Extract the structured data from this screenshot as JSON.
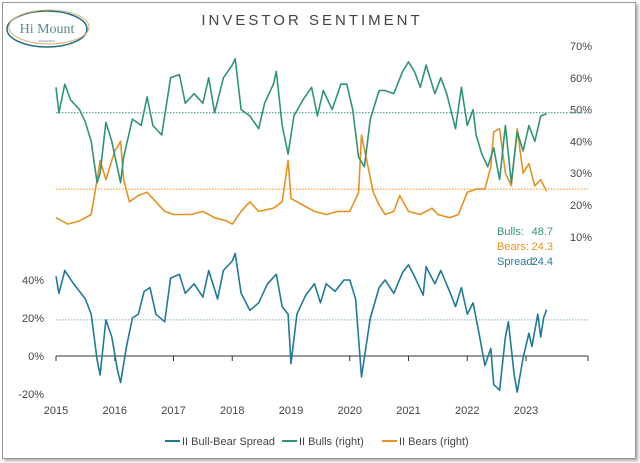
{
  "logo": {
    "text": "Hi Mount",
    "subtext": "RESEARCH"
  },
  "chart_data": {
    "type": "line",
    "title": "INVESTOR SENTIMENT",
    "x_ticks": [
      "2015",
      "2016",
      "2017",
      "2018",
      "2019",
      "2020",
      "2021",
      "2022",
      "2023"
    ],
    "top_panel": {
      "right_axis_ticks": [
        "70%",
        "60%",
        "50%",
        "40%",
        "30%",
        "20%",
        "10%"
      ],
      "ylim": [
        10,
        70
      ],
      "reference_lines": [
        {
          "series": "II Bulls (right)",
          "value": 49
        },
        {
          "series": "II Bears (right)",
          "value": 25
        }
      ],
      "series": [
        {
          "name": "II Bulls (right)",
          "color": "#2e9479",
          "points": [
            [
              2015.0,
              57
            ],
            [
              2015.05,
              49
            ],
            [
              2015.15,
              58
            ],
            [
              2015.25,
              53
            ],
            [
              2015.4,
              50
            ],
            [
              2015.5,
              46
            ],
            [
              2015.6,
              40
            ],
            [
              2015.7,
              27
            ],
            [
              2015.75,
              30
            ],
            [
              2015.85,
              46
            ],
            [
              2015.95,
              40
            ],
            [
              2016.1,
              27
            ],
            [
              2016.15,
              35
            ],
            [
              2016.3,
              47
            ],
            [
              2016.45,
              45
            ],
            [
              2016.55,
              54
            ],
            [
              2016.65,
              45
            ],
            [
              2016.8,
              42
            ],
            [
              2016.95,
              60
            ],
            [
              2017.1,
              61
            ],
            [
              2017.2,
              52
            ],
            [
              2017.35,
              55
            ],
            [
              2017.5,
              52
            ],
            [
              2017.6,
              60
            ],
            [
              2017.7,
              49
            ],
            [
              2017.85,
              60
            ],
            [
              2018.0,
              64
            ],
            [
              2018.05,
              66
            ],
            [
              2018.15,
              50
            ],
            [
              2018.3,
              48
            ],
            [
              2018.45,
              44
            ],
            [
              2018.55,
              52
            ],
            [
              2018.7,
              58
            ],
            [
              2018.75,
              62
            ],
            [
              2018.85,
              45
            ],
            [
              2018.95,
              36
            ],
            [
              2019.05,
              48
            ],
            [
              2019.2,
              53
            ],
            [
              2019.35,
              57
            ],
            [
              2019.45,
              48
            ],
            [
              2019.55,
              56
            ],
            [
              2019.7,
              50
            ],
            [
              2019.85,
              58
            ],
            [
              2019.95,
              58
            ],
            [
              2020.05,
              50
            ],
            [
              2020.15,
              35
            ],
            [
              2020.25,
              32
            ],
            [
              2020.35,
              47
            ],
            [
              2020.5,
              56
            ],
            [
              2020.6,
              56
            ],
            [
              2020.75,
              55
            ],
            [
              2020.9,
              62
            ],
            [
              2021.0,
              65
            ],
            [
              2021.1,
              62
            ],
            [
              2021.2,
              57
            ],
            [
              2021.3,
              64
            ],
            [
              2021.45,
              55
            ],
            [
              2021.55,
              60
            ],
            [
              2021.65,
              55
            ],
            [
              2021.8,
              44
            ],
            [
              2021.9,
              57
            ],
            [
              2022.0,
              45
            ],
            [
              2022.1,
              50
            ],
            [
              2022.15,
              42
            ],
            [
              2022.25,
              36
            ],
            [
              2022.35,
              32
            ],
            [
              2022.45,
              38
            ],
            [
              2022.55,
              28
            ],
            [
              2022.65,
              45
            ],
            [
              2022.75,
              27
            ],
            [
              2022.85,
              43
            ],
            [
              2022.95,
              37
            ],
            [
              2023.05,
              45
            ],
            [
              2023.15,
              40
            ],
            [
              2023.25,
              48
            ],
            [
              2023.35,
              48.7
            ]
          ]
        },
        {
          "name": "II Bears (right)",
          "color": "#e8901f",
          "points": [
            [
              2015.0,
              16
            ],
            [
              2015.2,
              14
            ],
            [
              2015.4,
              15
            ],
            [
              2015.6,
              17
            ],
            [
              2015.7,
              28
            ],
            [
              2015.75,
              34
            ],
            [
              2015.85,
              28
            ],
            [
              2016.0,
              37
            ],
            [
              2016.1,
              40
            ],
            [
              2016.15,
              28
            ],
            [
              2016.25,
              21
            ],
            [
              2016.4,
              23
            ],
            [
              2016.55,
              24
            ],
            [
              2016.7,
              21
            ],
            [
              2016.85,
              18
            ],
            [
              2017.0,
              17
            ],
            [
              2017.3,
              17
            ],
            [
              2017.5,
              18
            ],
            [
              2017.7,
              16
            ],
            [
              2017.9,
              15
            ],
            [
              2018.0,
              14
            ],
            [
              2018.15,
              18
            ],
            [
              2018.3,
              21
            ],
            [
              2018.45,
              18
            ],
            [
              2018.7,
              19
            ],
            [
              2018.85,
              21
            ],
            [
              2018.95,
              34
            ],
            [
              2019.0,
              22
            ],
            [
              2019.2,
              20
            ],
            [
              2019.4,
              18
            ],
            [
              2019.6,
              17
            ],
            [
              2019.8,
              18
            ],
            [
              2020.0,
              18
            ],
            [
              2020.15,
              24
            ],
            [
              2020.2,
              42
            ],
            [
              2020.3,
              33
            ],
            [
              2020.4,
              24
            ],
            [
              2020.5,
              20
            ],
            [
              2020.6,
              17
            ],
            [
              2020.75,
              18
            ],
            [
              2020.85,
              23
            ],
            [
              2021.0,
              18
            ],
            [
              2021.2,
              17
            ],
            [
              2021.4,
              19
            ],
            [
              2021.5,
              17
            ],
            [
              2021.7,
              16
            ],
            [
              2021.85,
              17
            ],
            [
              2022.0,
              24
            ],
            [
              2022.15,
              25
            ],
            [
              2022.3,
              25
            ],
            [
              2022.4,
              32
            ],
            [
              2022.45,
              43
            ],
            [
              2022.55,
              44
            ],
            [
              2022.65,
              30
            ],
            [
              2022.75,
              26
            ],
            [
              2022.85,
              44
            ],
            [
              2022.95,
              30
            ],
            [
              2023.05,
              33
            ],
            [
              2023.15,
              26
            ],
            [
              2023.25,
              28
            ],
            [
              2023.35,
              24.3
            ]
          ]
        }
      ]
    },
    "bottom_panel": {
      "left_axis_ticks": [
        "40%",
        "20%",
        "0%",
        "-20%"
      ],
      "ylim": [
        -20,
        40
      ],
      "reference_lines": [
        {
          "series": "II Bull-Bear Spread",
          "value": 19
        }
      ],
      "series": [
        {
          "name": "II Bull-Bear Spread",
          "color": "#1f7a99",
          "points": [
            [
              2015.0,
              42
            ],
            [
              2015.05,
              33
            ],
            [
              2015.15,
              45
            ],
            [
              2015.3,
              38
            ],
            [
              2015.5,
              30
            ],
            [
              2015.6,
              22
            ],
            [
              2015.7,
              -2
            ],
            [
              2015.75,
              -10
            ],
            [
              2015.85,
              19
            ],
            [
              2015.95,
              10
            ],
            [
              2016.05,
              -8
            ],
            [
              2016.1,
              -14
            ],
            [
              2016.2,
              5
            ],
            [
              2016.3,
              20
            ],
            [
              2016.4,
              22
            ],
            [
              2016.5,
              34
            ],
            [
              2016.6,
              36
            ],
            [
              2016.7,
              22
            ],
            [
              2016.85,
              18
            ],
            [
              2016.95,
              41
            ],
            [
              2017.1,
              43
            ],
            [
              2017.2,
              33
            ],
            [
              2017.35,
              38
            ],
            [
              2017.5,
              31
            ],
            [
              2017.6,
              45
            ],
            [
              2017.75,
              30
            ],
            [
              2017.85,
              45
            ],
            [
              2018.0,
              50
            ],
            [
              2018.05,
              54
            ],
            [
              2018.15,
              33
            ],
            [
              2018.3,
              24
            ],
            [
              2018.45,
              28
            ],
            [
              2018.6,
              38
            ],
            [
              2018.75,
              43
            ],
            [
              2018.85,
              26
            ],
            [
              2018.95,
              22
            ],
            [
              2019.0,
              -4
            ],
            [
              2019.1,
              22
            ],
            [
              2019.25,
              32
            ],
            [
              2019.4,
              38
            ],
            [
              2019.5,
              28
            ],
            [
              2019.6,
              38
            ],
            [
              2019.75,
              34
            ],
            [
              2019.9,
              40
            ],
            [
              2020.0,
              40
            ],
            [
              2020.1,
              30
            ],
            [
              2020.2,
              -11
            ],
            [
              2020.35,
              20
            ],
            [
              2020.5,
              36
            ],
            [
              2020.6,
              40
            ],
            [
              2020.75,
              33
            ],
            [
              2020.9,
              44
            ],
            [
              2021.0,
              48
            ],
            [
              2021.1,
              42
            ],
            [
              2021.25,
              32
            ],
            [
              2021.3,
              47
            ],
            [
              2021.45,
              38
            ],
            [
              2021.55,
              45
            ],
            [
              2021.7,
              34
            ],
            [
              2021.8,
              26
            ],
            [
              2021.9,
              36
            ],
            [
              2022.0,
              22
            ],
            [
              2022.1,
              28
            ],
            [
              2022.2,
              12
            ],
            [
              2022.3,
              -5
            ],
            [
              2022.4,
              4
            ],
            [
              2022.45,
              -15
            ],
            [
              2022.55,
              -18
            ],
            [
              2022.65,
              10
            ],
            [
              2022.7,
              18
            ],
            [
              2022.8,
              -10
            ],
            [
              2022.85,
              -19
            ],
            [
              2022.95,
              -1
            ],
            [
              2023.05,
              12
            ],
            [
              2023.1,
              5
            ],
            [
              2023.2,
              22
            ],
            [
              2023.25,
              10
            ],
            [
              2023.3,
              20
            ],
            [
              2023.35,
              24.4
            ]
          ]
        }
      ]
    },
    "annotations": [
      {
        "label": "Bulls:",
        "value": "48.7",
        "color": "#2e9479"
      },
      {
        "label": "Bears:",
        "value": "24.3",
        "color": "#e8901f"
      },
      {
        "label": "Spread:",
        "value": "24.4",
        "color": "#1f7a99"
      }
    ],
    "legend": {
      "placement": "bottom",
      "entries": [
        "II Bull-Bear Spread",
        "II Bulls (right)",
        "II Bears (right)"
      ]
    }
  }
}
